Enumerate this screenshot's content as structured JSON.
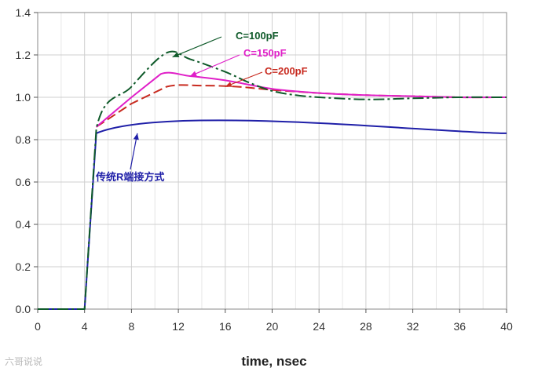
{
  "chart_data": {
    "type": "line",
    "title": "",
    "xlabel": "time, nsec",
    "ylabel": "",
    "xlim": [
      0,
      40
    ],
    "ylim": [
      0,
      1.4
    ],
    "xticks": [
      0,
      4,
      8,
      12,
      16,
      20,
      24,
      28,
      32,
      36,
      40
    ],
    "xtick_labels": [
      "0",
      "4",
      "8",
      "12",
      "16",
      "20",
      "24",
      "28",
      "32",
      "36",
      "40"
    ],
    "yticks": [
      0,
      0.2,
      0.4,
      0.6,
      0.8,
      1.0,
      1.2,
      1.4
    ],
    "ytick_labels": [
      "0.0",
      "0.2",
      "0.4",
      "0.6",
      "0.8",
      "1.0",
      "1.2",
      "1.4"
    ],
    "grid": true,
    "series": [
      {
        "name": "传统R端接方式",
        "color": "#1f1fa8",
        "dash": "solid",
        "points": [
          [
            0,
            0
          ],
          [
            4,
            0
          ],
          [
            5,
            0.83
          ],
          [
            40,
            0.83
          ]
        ]
      },
      {
        "name": "C=100pF",
        "color": "#0f5a2a",
        "dash": "dashdot",
        "points": [
          [
            0,
            0
          ],
          [
            4,
            0
          ],
          [
            5,
            0.85
          ],
          [
            8,
            1.05
          ],
          [
            11,
            1.21
          ],
          [
            13,
            1.18
          ],
          [
            16,
            1.12
          ],
          [
            18,
            1.07
          ],
          [
            20,
            1.03
          ],
          [
            22,
            1.01
          ],
          [
            24,
            1.0
          ],
          [
            28,
            0.99
          ],
          [
            32,
            0.995
          ],
          [
            36,
            1.0
          ],
          [
            40,
            1.0
          ]
        ]
      },
      {
        "name": "C=150pF",
        "color": "#e01fc8",
        "dash": "solid",
        "points": [
          [
            5,
            0.86
          ],
          [
            8,
            1.0
          ],
          [
            10.5,
            1.11
          ],
          [
            13,
            1.1
          ],
          [
            16,
            1.08
          ],
          [
            20,
            1.04
          ],
          [
            24,
            1.02
          ],
          [
            28,
            1.01
          ],
          [
            32,
            1.005
          ],
          [
            36,
            1.0
          ],
          [
            40,
            1.0
          ]
        ]
      },
      {
        "name": "C=200pF",
        "color": "#c82a1f",
        "dash": "dashed",
        "points": [
          [
            5,
            0.86
          ],
          [
            8,
            0.97
          ],
          [
            11,
            1.05
          ],
          [
            14,
            1.055
          ],
          [
            17,
            1.05
          ],
          [
            20,
            1.035
          ],
          [
            24,
            1.02
          ],
          [
            28,
            1.01
          ],
          [
            32,
            1.005
          ],
          [
            36,
            1.0
          ],
          [
            40,
            1.0
          ]
        ]
      }
    ],
    "annotations": [
      {
        "text": "C=100pF",
        "color": "#0f5a2a",
        "point_to": [
          11.5,
          1.19
        ]
      },
      {
        "text": "C=150pF",
        "color": "#e01fc8",
        "point_to": [
          13,
          1.1
        ]
      },
      {
        "text": "C=200pF",
        "color": "#c82a1f",
        "point_to": [
          16,
          1.05
        ]
      },
      {
        "text": "传统R端接方式",
        "color": "#1f1fa8",
        "point_to": [
          8.5,
          0.83
        ]
      }
    ]
  },
  "watermark": "六哥说说"
}
